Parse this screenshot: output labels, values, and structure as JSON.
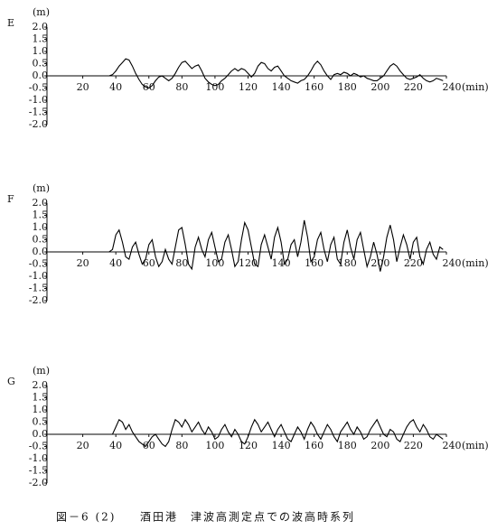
{
  "chart_data": [
    {
      "type": "line",
      "title": "E",
      "ylabel": "(m)",
      "xlabel": "(min)",
      "color": "#000000",
      "xlim": [
        0,
        240
      ],
      "ylim": [
        -2,
        2
      ],
      "xticks": [
        20,
        40,
        60,
        80,
        100,
        120,
        140,
        160,
        180,
        200,
        220,
        240
      ],
      "yticks": [
        {
          "value": 2,
          "label": "2.0"
        },
        1.5,
        {
          "value": 1,
          "label": "1.0"
        },
        0.5,
        {
          "value": 0,
          "label": "0.0"
        },
        -0.5,
        {
          "value": -1,
          "label": "-1.0"
        },
        -1.5,
        {
          "value": -2,
          "label": "-2.0"
        }
      ],
      "x": [
        0,
        2,
        4,
        6,
        8,
        10,
        12,
        14,
        16,
        18,
        20,
        22,
        24,
        26,
        28,
        30,
        32,
        34,
        36,
        38,
        40,
        42,
        44,
        46,
        48,
        50,
        52,
        54,
        56,
        58,
        60,
        62,
        64,
        66,
        68,
        70,
        72,
        74,
        76,
        78,
        80,
        82,
        84,
        86,
        88,
        90,
        92,
        94,
        96,
        98,
        100,
        102,
        104,
        106,
        108,
        110,
        112,
        114,
        116,
        118,
        120,
        122,
        124,
        126,
        128,
        130,
        132,
        134,
        136,
        138,
        140,
        142,
        144,
        146,
        148,
        150,
        152,
        154,
        156,
        158,
        160,
        162,
        164,
        166,
        168,
        170,
        172,
        174,
        176,
        178,
        180,
        182,
        184,
        186,
        188,
        190,
        192,
        194,
        196,
        198,
        200,
        202,
        204,
        206,
        208,
        210,
        212,
        214,
        216,
        218,
        220,
        222,
        224,
        226,
        228,
        230,
        232,
        234,
        236,
        238
      ],
      "values": [
        0,
        0,
        0,
        0,
        0,
        0,
        0,
        0,
        0,
        0,
        0,
        0,
        0,
        0,
        0,
        0,
        0,
        0,
        0,
        0.05,
        0.2,
        0.4,
        0.55,
        0.7,
        0.65,
        0.4,
        0.1,
        -0.15,
        -0.35,
        -0.45,
        -0.5,
        -0.4,
        -0.2,
        -0.05,
        0.0,
        -0.1,
        -0.2,
        -0.1,
        0.1,
        0.35,
        0.55,
        0.6,
        0.45,
        0.3,
        0.4,
        0.45,
        0.2,
        -0.1,
        -0.25,
        -0.35,
        -0.4,
        -0.35,
        -0.2,
        -0.1,
        0.05,
        0.2,
        0.3,
        0.2,
        0.3,
        0.25,
        0.1,
        -0.05,
        0.1,
        0.4,
        0.55,
        0.5,
        0.3,
        0.2,
        0.35,
        0.4,
        0.2,
        0.0,
        -0.1,
        -0.2,
        -0.25,
        -0.3,
        -0.2,
        -0.15,
        0.0,
        0.2,
        0.45,
        0.6,
        0.45,
        0.2,
        0.0,
        -0.15,
        0.05,
        0.1,
        0.05,
        0.15,
        0.1,
        0.0,
        0.1,
        0.05,
        -0.05,
        0.0,
        -0.1,
        -0.15,
        -0.2,
        -0.2,
        -0.1,
        0.0,
        0.2,
        0.4,
        0.5,
        0.4,
        0.2,
        0.05,
        -0.1,
        -0.15,
        -0.1,
        -0.05,
        0.05,
        -0.1,
        -0.2,
        -0.25,
        -0.2,
        -0.1,
        -0.15,
        -0.2
      ]
    },
    {
      "type": "line",
      "title": "F",
      "ylabel": "(m)",
      "xlabel": "(min)",
      "color": "#000000",
      "xlim": [
        0,
        240
      ],
      "ylim": [
        -2,
        2
      ],
      "xticks": [
        20,
        40,
        60,
        80,
        100,
        120,
        140,
        160,
        180,
        200,
        220,
        240
      ],
      "yticks": [
        {
          "value": 2,
          "label": "2.0"
        },
        1.5,
        {
          "value": 1,
          "label": "1.0"
        },
        0.5,
        {
          "value": 0,
          "label": "0.0"
        },
        -0.5,
        {
          "value": -1,
          "label": "-1.0"
        },
        -1.5,
        {
          "value": -2,
          "label": "-2.0"
        }
      ],
      "x": [
        0,
        2,
        4,
        6,
        8,
        10,
        12,
        14,
        16,
        18,
        20,
        22,
        24,
        26,
        28,
        30,
        32,
        34,
        36,
        38,
        40,
        42,
        44,
        46,
        48,
        50,
        52,
        54,
        56,
        58,
        60,
        62,
        64,
        66,
        68,
        70,
        72,
        74,
        76,
        78,
        80,
        82,
        84,
        86,
        88,
        90,
        92,
        94,
        96,
        98,
        100,
        102,
        104,
        106,
        108,
        110,
        112,
        114,
        116,
        118,
        120,
        122,
        124,
        126,
        128,
        130,
        132,
        134,
        136,
        138,
        140,
        142,
        144,
        146,
        148,
        150,
        152,
        154,
        156,
        158,
        160,
        162,
        164,
        166,
        168,
        170,
        172,
        174,
        176,
        178,
        180,
        182,
        184,
        186,
        188,
        190,
        192,
        194,
        196,
        198,
        200,
        202,
        204,
        206,
        208,
        210,
        212,
        214,
        216,
        218,
        220,
        222,
        224,
        226,
        228,
        230,
        232,
        234,
        236,
        238
      ],
      "values": [
        0,
        0,
        0,
        0,
        0,
        0,
        0,
        0,
        0,
        0,
        0,
        0,
        0,
        0,
        0,
        0,
        0,
        0,
        0,
        0.1,
        0.7,
        0.9,
        0.4,
        -0.2,
        -0.3,
        0.2,
        0.4,
        -0.1,
        -0.5,
        -0.3,
        0.3,
        0.5,
        -0.2,
        -0.6,
        -0.4,
        0.1,
        -0.3,
        -0.5,
        0.2,
        0.9,
        1.0,
        0.3,
        -0.5,
        -0.7,
        0.2,
        0.6,
        0.1,
        -0.2,
        0.5,
        0.8,
        0.2,
        -0.4,
        -0.3,
        0.4,
        0.7,
        0.1,
        -0.6,
        -0.4,
        0.5,
        1.2,
        0.9,
        0.2,
        -0.5,
        -0.6,
        0.3,
        0.7,
        0.2,
        -0.3,
        0.6,
        1.0,
        0.4,
        -0.5,
        -0.3,
        0.3,
        0.5,
        -0.2,
        0.4,
        1.3,
        0.6,
        -0.4,
        -0.2,
        0.5,
        0.8,
        0.1,
        -0.4,
        0.3,
        0.6,
        -0.3,
        -0.5,
        0.4,
        0.9,
        0.2,
        -0.3,
        0.5,
        0.8,
        0.1,
        -0.6,
        -0.2,
        0.4,
        -0.1,
        -0.8,
        -0.2,
        0.6,
        1.1,
        0.5,
        -0.4,
        0.2,
        0.7,
        0.3,
        -0.3,
        0.4,
        0.6,
        -0.2,
        -0.5,
        0.1,
        0.4,
        -0.1,
        -0.3,
        0.2,
        0.1
      ]
    },
    {
      "type": "line",
      "title": "G",
      "ylabel": "(m)",
      "xlabel": "(min)",
      "color": "#000000",
      "xlim": [
        0,
        240
      ],
      "ylim": [
        -2,
        2
      ],
      "xticks": [
        20,
        40,
        60,
        80,
        100,
        120,
        140,
        160,
        180,
        200,
        220,
        240
      ],
      "yticks": [
        {
          "value": 2,
          "label": "2.0"
        },
        1.5,
        {
          "value": 1,
          "label": "1.0"
        },
        0.5,
        {
          "value": 0,
          "label": "0.0"
        },
        -0.5,
        {
          "value": -1,
          "label": "-1.0"
        },
        -1.5,
        {
          "value": -2,
          "label": "-2.0"
        }
      ],
      "x": [
        0,
        2,
        4,
        6,
        8,
        10,
        12,
        14,
        16,
        18,
        20,
        22,
        24,
        26,
        28,
        30,
        32,
        34,
        36,
        38,
        40,
        42,
        44,
        46,
        48,
        50,
        52,
        54,
        56,
        58,
        60,
        62,
        64,
        66,
        68,
        70,
        72,
        74,
        76,
        78,
        80,
        82,
        84,
        86,
        88,
        90,
        92,
        94,
        96,
        98,
        100,
        102,
        104,
        106,
        108,
        110,
        112,
        114,
        116,
        118,
        120,
        122,
        124,
        126,
        128,
        130,
        132,
        134,
        136,
        138,
        140,
        142,
        144,
        146,
        148,
        150,
        152,
        154,
        156,
        158,
        160,
        162,
        164,
        166,
        168,
        170,
        172,
        174,
        176,
        178,
        180,
        182,
        184,
        186,
        188,
        190,
        192,
        194,
        196,
        198,
        200,
        202,
        204,
        206,
        208,
        210,
        212,
        214,
        216,
        218,
        220,
        222,
        224,
        226,
        228,
        230,
        232,
        234,
        236,
        238
      ],
      "values": [
        0,
        0,
        0,
        0,
        0,
        0,
        0,
        0,
        0,
        0,
        0,
        0,
        0,
        0,
        0,
        0,
        0,
        0,
        0,
        0.0,
        0.3,
        0.6,
        0.5,
        0.2,
        0.4,
        0.1,
        -0.1,
        -0.3,
        -0.4,
        -0.5,
        -0.3,
        -0.1,
        0.0,
        -0.2,
        -0.4,
        -0.5,
        -0.3,
        0.2,
        0.6,
        0.5,
        0.3,
        0.6,
        0.4,
        0.1,
        0.3,
        0.5,
        0.2,
        0.0,
        0.3,
        0.1,
        -0.2,
        -0.1,
        0.2,
        0.4,
        0.1,
        -0.1,
        0.2,
        0.0,
        -0.3,
        -0.4,
        -0.1,
        0.3,
        0.6,
        0.4,
        0.1,
        0.3,
        0.5,
        0.2,
        -0.1,
        0.2,
        0.4,
        0.1,
        -0.2,
        -0.3,
        0.0,
        0.3,
        0.1,
        -0.2,
        0.2,
        0.5,
        0.3,
        0.0,
        -0.2,
        0.1,
        0.4,
        0.2,
        -0.1,
        -0.3,
        0.1,
        0.3,
        0.5,
        0.2,
        0.0,
        0.3,
        0.1,
        -0.2,
        -0.1,
        0.2,
        0.4,
        0.6,
        0.3,
        0.0,
        -0.1,
        0.2,
        0.1,
        -0.2,
        -0.3,
        0.0,
        0.3,
        0.5,
        0.6,
        0.3,
        0.1,
        0.4,
        0.2,
        -0.1,
        -0.2,
        0.0,
        -0.1,
        -0.2
      ]
    }
  ],
  "figure_caption": {
    "number": "図－6 (2)",
    "text": "酒田港　津波高測定点での波高時系列"
  }
}
